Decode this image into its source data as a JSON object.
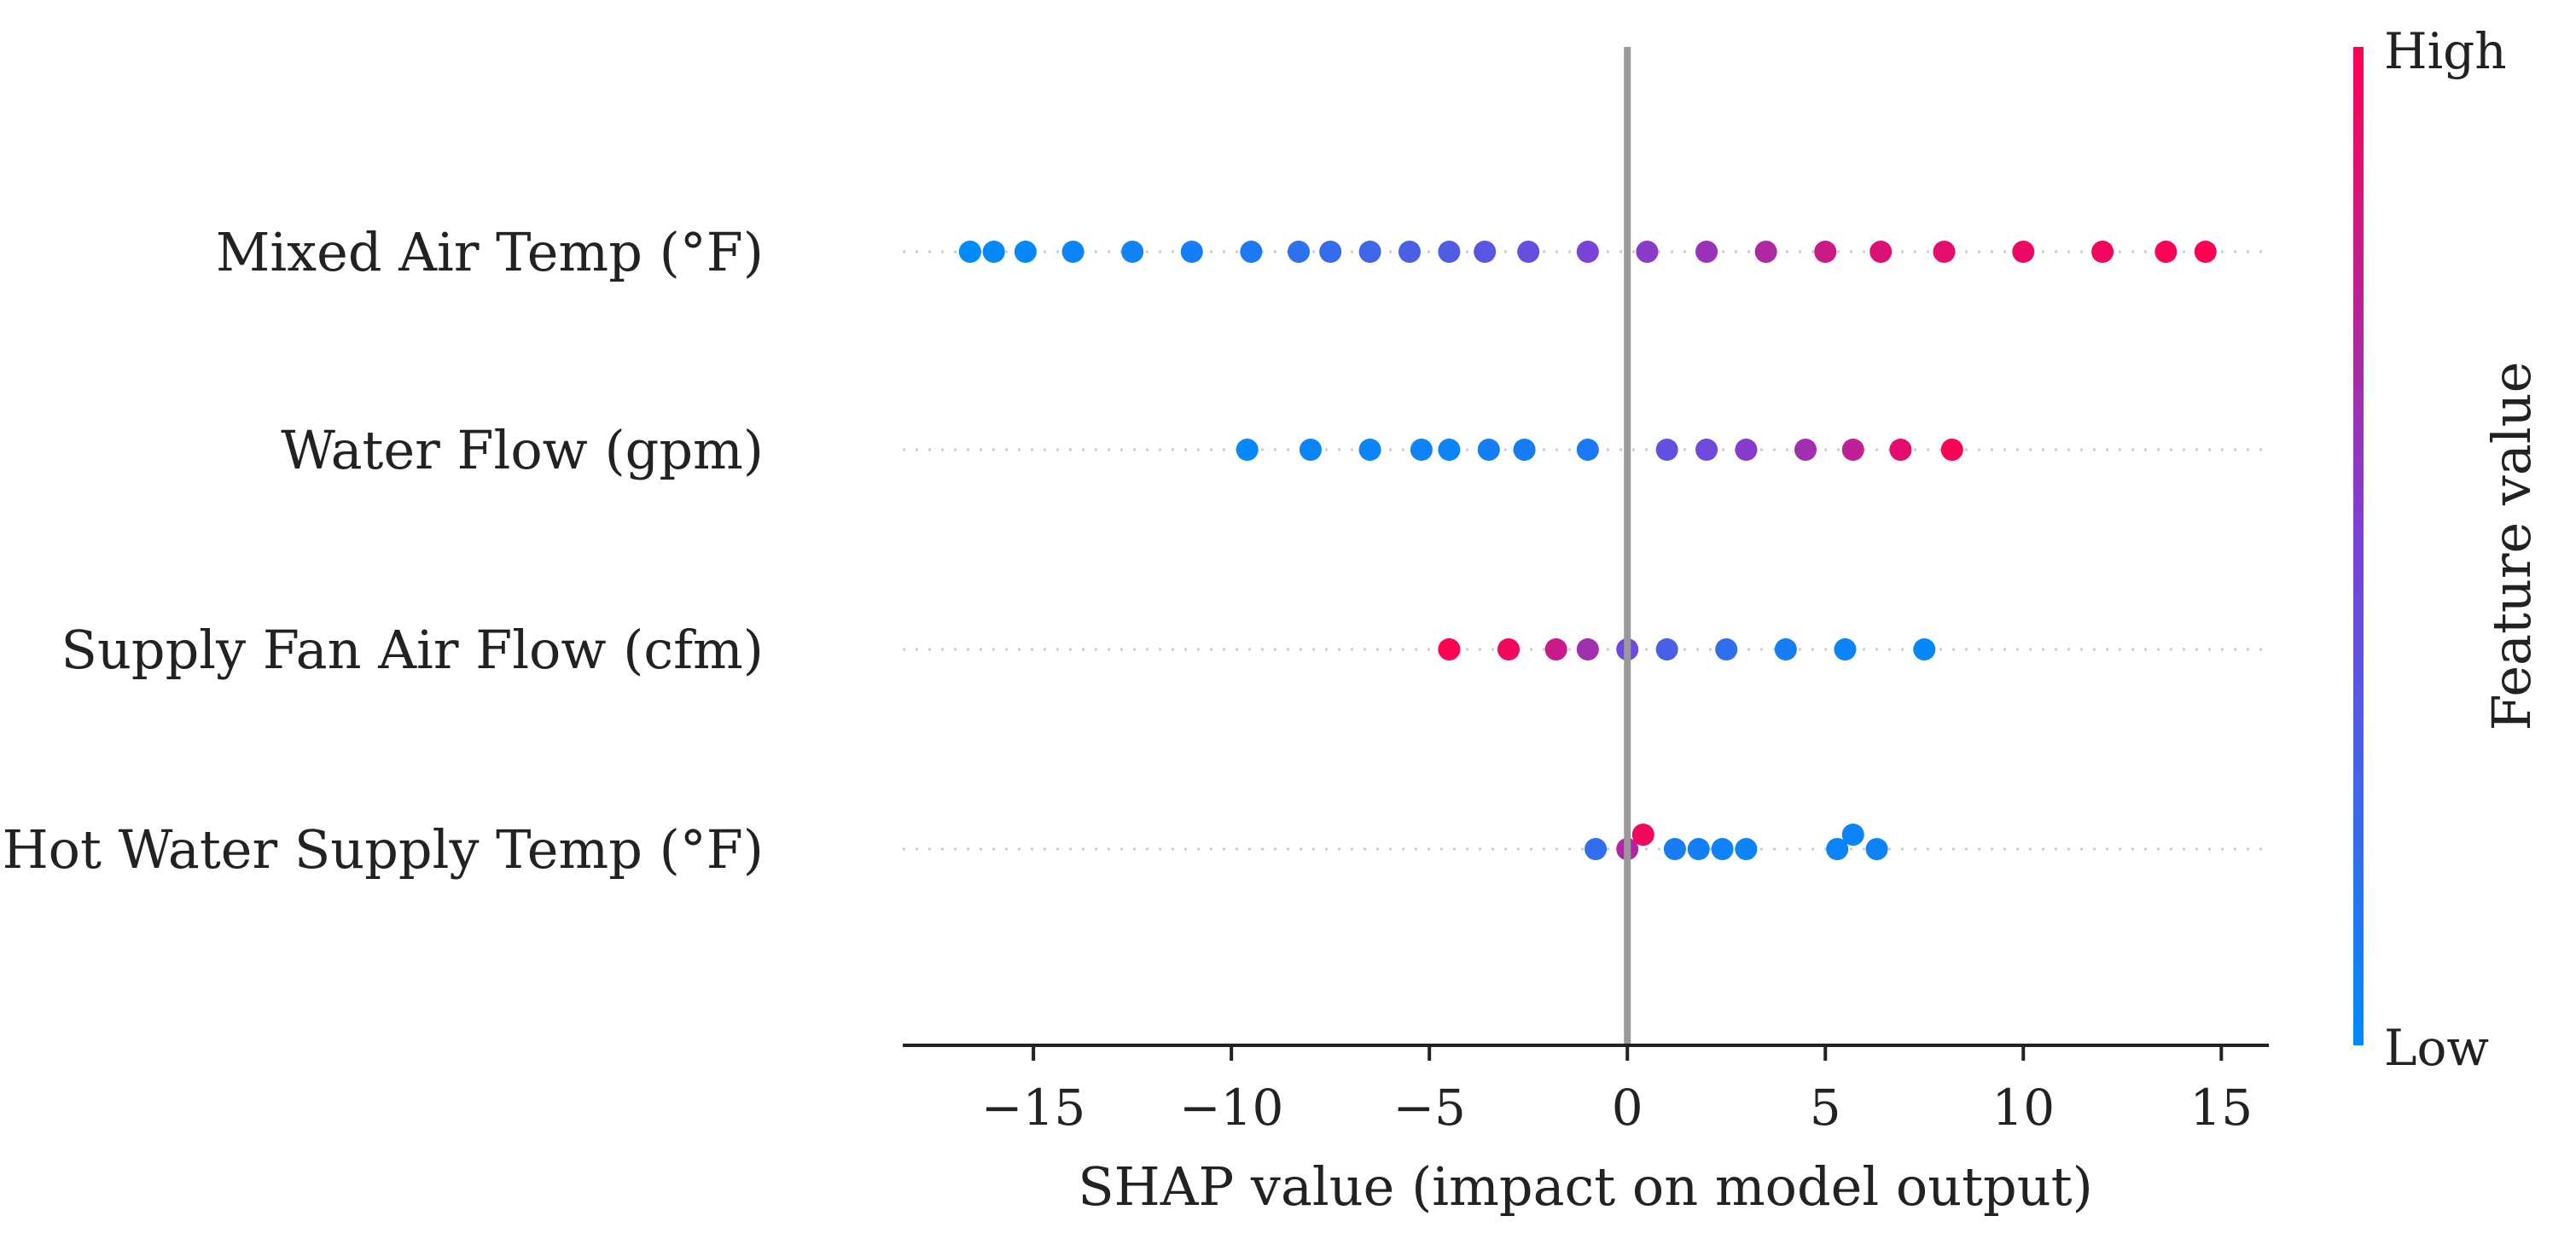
{
  "chart_data": {
    "type": "scatter",
    "subtype": "shap-beeswarm",
    "title": "",
    "xlabel": "SHAP value (impact on model output)",
    "xlim": [
      -18.3,
      16.2
    ],
    "xticks": [
      -15,
      -10,
      -5,
      0,
      5,
      10,
      15
    ],
    "xtick_labels": [
      "−15",
      "−10",
      "−5",
      "0",
      "5",
      "10",
      "15"
    ],
    "features": [
      {
        "name": "Mixed Air Temp (°F)",
        "points": [
          {
            "x": -16.6,
            "v": 0.0
          },
          {
            "x": -16.0,
            "v": 0.02
          },
          {
            "x": -15.2,
            "v": 0.03
          },
          {
            "x": -14.0,
            "v": 0.05
          },
          {
            "x": -12.5,
            "v": 0.07
          },
          {
            "x": -11.0,
            "v": 0.09
          },
          {
            "x": -9.5,
            "v": 0.12
          },
          {
            "x": -8.3,
            "v": 0.18
          },
          {
            "x": -7.5,
            "v": 0.22
          },
          {
            "x": -6.5,
            "v": 0.26
          },
          {
            "x": -5.5,
            "v": 0.3
          },
          {
            "x": -4.5,
            "v": 0.33
          },
          {
            "x": -3.6,
            "v": 0.36
          },
          {
            "x": -2.5,
            "v": 0.42
          },
          {
            "x": -1.0,
            "v": 0.5
          },
          {
            "x": 0.5,
            "v": 0.56
          },
          {
            "x": 2.0,
            "v": 0.62
          },
          {
            "x": 3.5,
            "v": 0.7
          },
          {
            "x": 5.0,
            "v": 0.8
          },
          {
            "x": 6.4,
            "v": 0.86
          },
          {
            "x": 8.0,
            "v": 0.9
          },
          {
            "x": 10.0,
            "v": 0.93
          },
          {
            "x": 12.0,
            "v": 0.96
          },
          {
            "x": 13.6,
            "v": 0.98
          },
          {
            "x": 14.6,
            "v": 1.0
          }
        ]
      },
      {
        "name": "Water Flow (gpm)",
        "points": [
          {
            "x": -9.6,
            "v": 0.02
          },
          {
            "x": -8.0,
            "v": 0.04
          },
          {
            "x": -6.5,
            "v": 0.05
          },
          {
            "x": -5.2,
            "v": 0.06
          },
          {
            "x": -4.5,
            "v": 0.05
          },
          {
            "x": -3.5,
            "v": 0.08
          },
          {
            "x": -2.6,
            "v": 0.1
          },
          {
            "x": -1.0,
            "v": 0.12
          },
          {
            "x": 1.0,
            "v": 0.4
          },
          {
            "x": 2.0,
            "v": 0.45
          },
          {
            "x": 3.0,
            "v": 0.55
          },
          {
            "x": 4.5,
            "v": 0.65
          },
          {
            "x": 5.7,
            "v": 0.75
          },
          {
            "x": 6.9,
            "v": 0.9
          },
          {
            "x": 8.2,
            "v": 0.98
          }
        ]
      },
      {
        "name": "Supply Fan Air Flow (cfm)",
        "points": [
          {
            "x": -4.5,
            "v": 1.0
          },
          {
            "x": -3.0,
            "v": 0.95
          },
          {
            "x": -1.8,
            "v": 0.8
          },
          {
            "x": -1.0,
            "v": 0.65
          },
          {
            "x": 0.0,
            "v": 0.45
          },
          {
            "x": 1.0,
            "v": 0.3
          },
          {
            "x": 2.5,
            "v": 0.2
          },
          {
            "x": 4.0,
            "v": 0.1
          },
          {
            "x": 5.5,
            "v": 0.05
          },
          {
            "x": 7.5,
            "v": 0.02
          }
        ]
      },
      {
        "name": "Hot Water Supply Temp (°F)",
        "points": [
          {
            "x": -0.8,
            "v": 0.2
          },
          {
            "x": 0.0,
            "v": 0.7
          },
          {
            "x": 0.4,
            "v": 0.95
          },
          {
            "x": 1.2,
            "v": 0.1
          },
          {
            "x": 1.8,
            "v": 0.08
          },
          {
            "x": 2.4,
            "v": 0.06
          },
          {
            "x": 3.0,
            "v": 0.05
          },
          {
            "x": 5.3,
            "v": 0.05
          },
          {
            "x": 5.7,
            "v": 0.05
          },
          {
            "x": 6.3,
            "v": 0.05
          }
        ]
      }
    ],
    "colorbar": {
      "label": "Feature value",
      "high_label": "High",
      "low_label": "Low",
      "colors": [
        "#008bfb",
        "#7a42d8",
        "#ff0052"
      ]
    }
  }
}
